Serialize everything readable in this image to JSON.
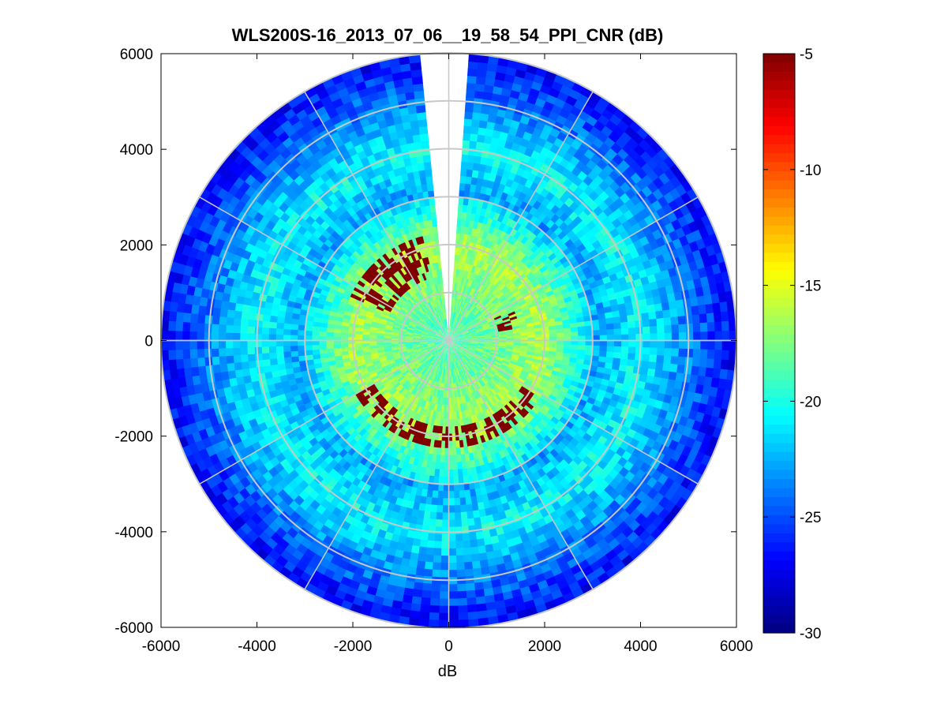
{
  "chart_data": {
    "type": "heatmap",
    "subtype": "polar-ppi",
    "title": "WLS200S-16_2013_07_06__19_58_54_PPI_CNR (dB)",
    "xlabel": "dB",
    "ylabel": "",
    "xlim": [
      -6000,
      6000
    ],
    "ylim": [
      -6000,
      6000
    ],
    "x_ticks": [
      "-6000",
      "-4000",
      "-2000",
      "0",
      "2000",
      "4000",
      "6000"
    ],
    "y_ticks": [
      "6000",
      "4000",
      "2000",
      "0",
      "-2000",
      "-4000",
      "-6000"
    ],
    "max_range": 6000,
    "range_rings": [
      1000,
      2000,
      3000,
      4000,
      5000,
      6000
    ],
    "spoke_angles_deg": [
      0,
      30,
      60,
      90,
      120,
      150,
      180,
      210,
      240,
      270,
      300,
      330
    ],
    "missing_sector_azimuth_deg": [
      355,
      4
    ],
    "colorbar": {
      "min": -30,
      "max": -5,
      "ticks": [
        "-5",
        "-10",
        "-15",
        "-20",
        "-25",
        "-30"
      ],
      "colormap": "jet"
    },
    "cnr_profile_db": {
      "near_range_0_2000": -19,
      "mid_range_2000_3000": -23,
      "far_range_4000_6000": -27
    },
    "high_cnr_clutter_db": -5,
    "clutter_regions": [
      {
        "azimuth_deg": [
          295,
          345
        ],
        "range_m": [
          1400,
          2200
        ],
        "cnr_db": -5
      },
      {
        "azimuth_deg": [
          65,
          80
        ],
        "range_m": [
          1100,
          1450
        ],
        "cnr_db": -5
      },
      {
        "azimuth_deg": [
          120,
          240
        ],
        "range_m": [
          1750,
          2250
        ],
        "cnr_db": -5
      }
    ]
  }
}
